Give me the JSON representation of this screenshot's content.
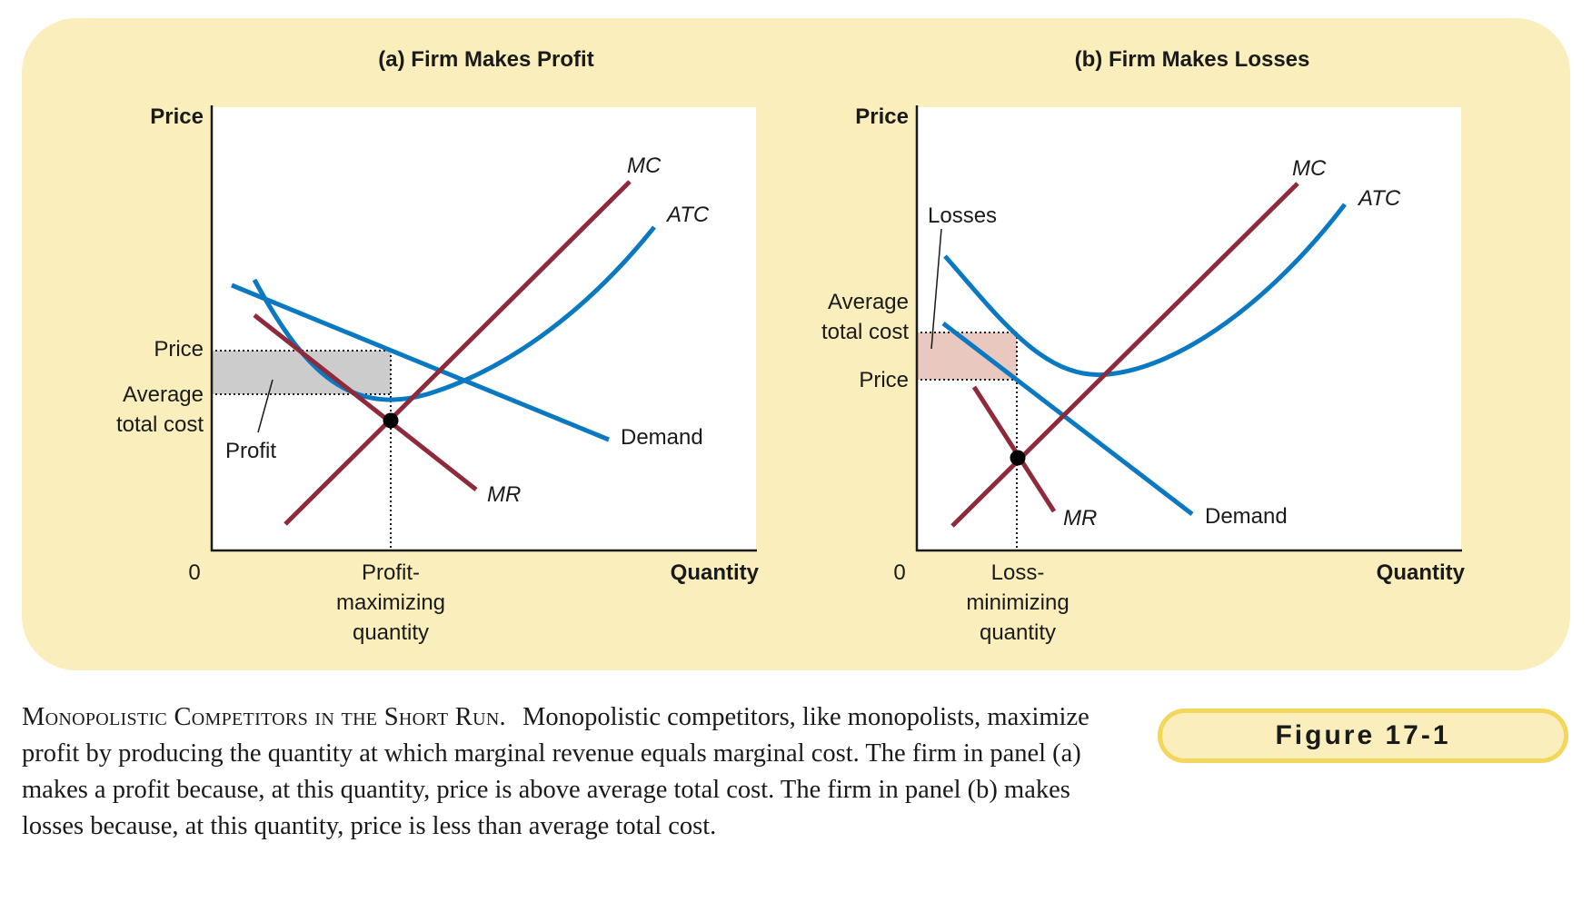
{
  "colors": {
    "background": "#fbeebd",
    "plot_bg": "#ffffff",
    "demand_atc": "#0a79c2",
    "mc_mr": "#8e2a3b",
    "profit_fill": "#cccccc",
    "loss_fill": "#e8c8bf",
    "badge_border": "#f3d75c"
  },
  "panel_a": {
    "title": "(a) Firm Makes Profit",
    "y_axis_label": "Price",
    "x_axis_label": "Quantity",
    "origin": "0",
    "price_label": "Price",
    "atc_label_1": "Average",
    "atc_label_2": "total cost",
    "area_label": "Profit",
    "quantity_label_1": "Profit-",
    "quantity_label_2": "maximizing",
    "quantity_label_3": "quantity",
    "mc_label": "MC",
    "atc_label": "ATC",
    "demand_label": "Demand",
    "mr_label": "MR"
  },
  "panel_b": {
    "title": "(b) Firm Makes Losses",
    "y_axis_label": "Price",
    "x_axis_label": "Quantity",
    "origin": "0",
    "area_label": "Losses",
    "atc_label_1": "Average",
    "atc_label_2": "total cost",
    "price_label": "Price",
    "quantity_label_1": "Loss-",
    "quantity_label_2": "minimizing",
    "quantity_label_3": "quantity",
    "mc_label": "MC",
    "atc_label": "ATC",
    "demand_label": "Demand",
    "mr_label": "MR"
  },
  "caption": {
    "title": "Monopolistic Competitors in the Short Run.",
    "body": "Monopolistic competitors, like monopolists, maximize profit by producing the quantity at which marginal revenue equals marginal cost. The firm in panel (a) makes a profit because, at this quantity, price is above average total cost. The firm in panel (b) makes losses because, at this quantity, price is less than average total cost."
  },
  "figure_label": "Figure 17-1"
}
